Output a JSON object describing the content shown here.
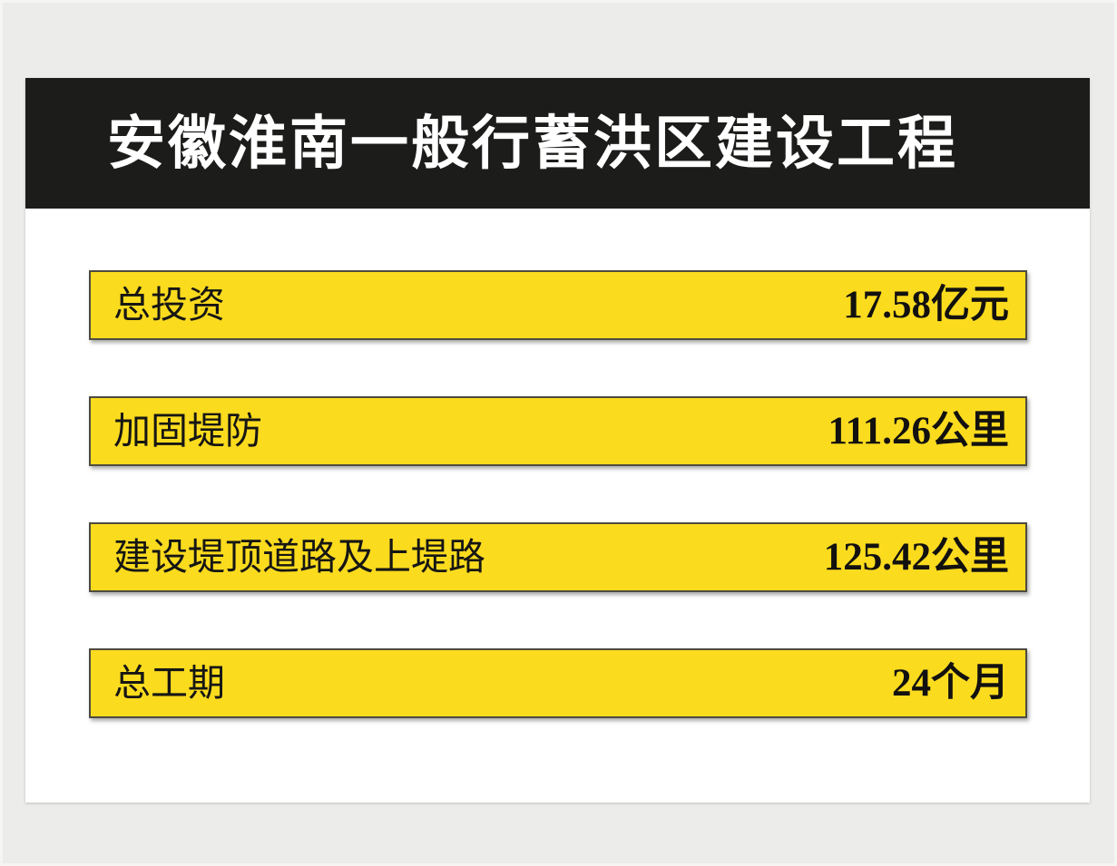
{
  "chart_data": {
    "type": "table",
    "title": "安徽淮南一般行蓄洪区建设工程",
    "rows": [
      {
        "label": "总投资",
        "value": 17.58,
        "unit": "亿元",
        "display_value": "17.58亿元"
      },
      {
        "label": "加固堤防",
        "value": 111.26,
        "unit": "公里",
        "display_value": "111.26公里"
      },
      {
        "label": "建设堤顶道路及上堤路",
        "value": 125.42,
        "unit": "公里",
        "display_value": "125.42公里"
      },
      {
        "label": "总工期",
        "value": 24,
        "unit": "个月",
        "display_value": "24个月"
      }
    ],
    "legend_position": "none",
    "grid": false
  },
  "colors": {
    "page_background": "#ECECEA",
    "card_background": "#FFFFFF",
    "header_background": "#1C1C1A",
    "header_text": "#FFFFFF",
    "bar_fill": "#FBDB1E",
    "bar_border": "#4D4B40",
    "bar_text": "#161614"
  }
}
